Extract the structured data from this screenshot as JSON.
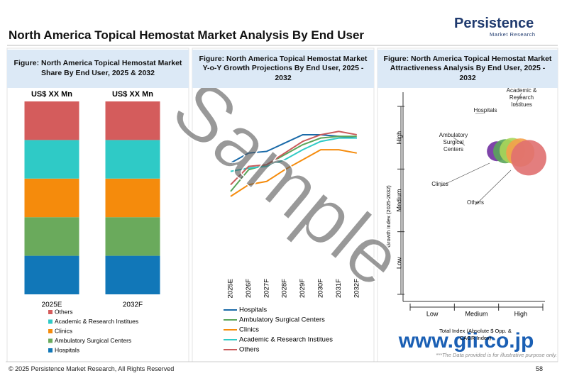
{
  "header": {
    "title": "North America Topical Hemostat Market Analysis By End User",
    "logo": "Persistence",
    "logo_sub": "Market Research"
  },
  "chart_data": [
    {
      "type": "bar",
      "stacked": true,
      "title": "Figure: North America Topical Hemostat Market Share By End User, 2025 & 2032",
      "categories": [
        "2025E",
        "2032F"
      ],
      "bar_totals": [
        "US$ XX Mn",
        "US$ XX Mn"
      ],
      "ylim": [
        0,
        100
      ],
      "series": [
        {
          "name": "Hospitals",
          "color": "#1177b8",
          "values": [
            20,
            20
          ]
        },
        {
          "name": "Ambulatory Surgical Centers",
          "color": "#6aaa5c",
          "values": [
            20,
            20
          ]
        },
        {
          "name": "Clinics",
          "color": "#f58b0c",
          "values": [
            20,
            20
          ]
        },
        {
          "name": "Academic & Research Institues",
          "color": "#2fcac6",
          "values": [
            20,
            20
          ]
        },
        {
          "name": "Others",
          "color": "#d45c5c",
          "values": [
            20,
            20
          ]
        }
      ]
    },
    {
      "type": "line",
      "title": "Figure: North America Topical Hemostat Market Y-o-Y Growth Projections By End User, 2025 - 2032",
      "categories": [
        "2025E",
        "2026F",
        "2027F",
        "2028F",
        "2029F",
        "2030F",
        "2031F",
        "2032F"
      ],
      "ylim": [
        0,
        10
      ],
      "series": [
        {
          "name": "Hospitals",
          "color": "#1a6aa8",
          "values": [
            6.6,
            7.2,
            7.3,
            7.8,
            8.3,
            8.3,
            8.2,
            8.1
          ]
        },
        {
          "name": "Ambulatory Surgical Centers",
          "color": "#5aa55a",
          "values": [
            4.9,
            6.2,
            6.5,
            7.1,
            7.7,
            8.1,
            8.2,
            8.2
          ]
        },
        {
          "name": "Clinics",
          "color": "#f58b0c",
          "values": [
            4.6,
            5.3,
            5.5,
            6.2,
            6.8,
            7.4,
            7.4,
            7.2
          ]
        },
        {
          "name": "Academic & Research Institues",
          "color": "#2fcac6",
          "values": [
            6.1,
            6.3,
            6.4,
            6.8,
            7.4,
            7.9,
            8.1,
            8.1
          ]
        },
        {
          "name": "Others",
          "color": "#c95a5a",
          "values": [
            5.3,
            6.4,
            6.5,
            7.2,
            7.9,
            8.3,
            8.5,
            8.3
          ]
        }
      ]
    },
    {
      "type": "bubble",
      "title": "Figure: North America Topical Hemostat Market Attractiveness Analysis By End User, 2025 - 2032",
      "xlabel": "Total Index (Absolute $ Opp. & CAGR Index)",
      "ylabel": "Growth Index (2025-2032)",
      "x_categories": [
        "Low",
        "Medium",
        "High"
      ],
      "y_categories": [
        "Low",
        "Medium",
        "High"
      ],
      "xlim": [
        0,
        3
      ],
      "ylim": [
        0,
        3
      ],
      "series": [
        {
          "name": "Hospitals",
          "color": "#7030a0",
          "x": [
            1.96
          ],
          "values": [
            2.31
          ],
          "sizes": [
            14
          ]
        },
        {
          "name": "Ambulatory Surgical Centers",
          "color": "#5aa55a",
          "x": [
            2.15
          ],
          "values": [
            2.31
          ],
          "sizes": [
            17
          ]
        },
        {
          "name": "Academic & Research Institues",
          "color": "#a8d65a",
          "x": [
            2.31
          ],
          "values": [
            2.32
          ],
          "sizes": [
            18
          ]
        },
        {
          "name": "Clinics",
          "color": "#f5a04a",
          "x": [
            2.49
          ],
          "values": [
            2.29
          ],
          "sizes": [
            20
          ]
        },
        {
          "name": "Others",
          "color": "#e07070",
          "x": [
            2.68
          ],
          "values": [
            2.21
          ],
          "sizes": [
            25
          ]
        }
      ]
    }
  ],
  "watermark": "Sample",
  "source_url": "www.gii.co.jp",
  "disclaimer": "***The Data provided is for illustrative purpose only.",
  "footer": {
    "copyright": "© 2025 Persistence Market Research, All Rights Reserved",
    "page": "58"
  }
}
